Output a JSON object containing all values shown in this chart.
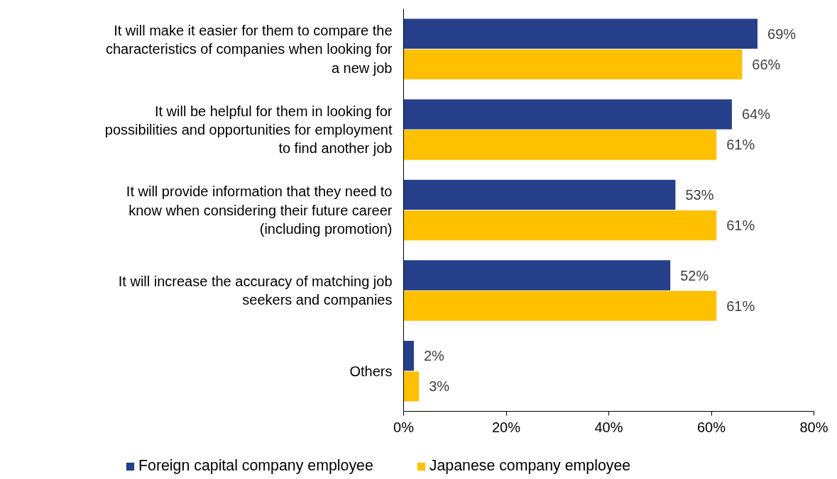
{
  "chart_data": {
    "type": "bar",
    "orientation": "horizontal",
    "categories": [
      "It will make it easier for them to compare the characteristics of companies when looking for a new job",
      "It will be helpful for them in looking for possibilities and opportunities for employment to find another job",
      "It will provide information that they need to know when considering their future career (including promotion)",
      "It will increase the accuracy of matching job seekers and companies",
      "Others"
    ],
    "series": [
      {
        "name": "Foreign capital company employee",
        "color": "#253f8a",
        "values": [
          69,
          64,
          53,
          52,
          2
        ],
        "value_labels": [
          "69%",
          "64%",
          "53%",
          "52%",
          "2%"
        ]
      },
      {
        "name": "Japanese company employee",
        "color": "#ffc000",
        "values": [
          66,
          61,
          61,
          61,
          3
        ],
        "value_labels": [
          "66%",
          "61%",
          "61%",
          "61%",
          "3%"
        ]
      }
    ],
    "xlim": [
      0,
      80
    ],
    "xticks": [
      {
        "value": 0,
        "label": "0%"
      },
      {
        "value": 20,
        "label": "20%"
      },
      {
        "value": 40,
        "label": "40%"
      },
      {
        "value": 60,
        "label": "60%"
      },
      {
        "value": 80,
        "label": "80%"
      }
    ],
    "grid": false,
    "legend": "bottom"
  }
}
